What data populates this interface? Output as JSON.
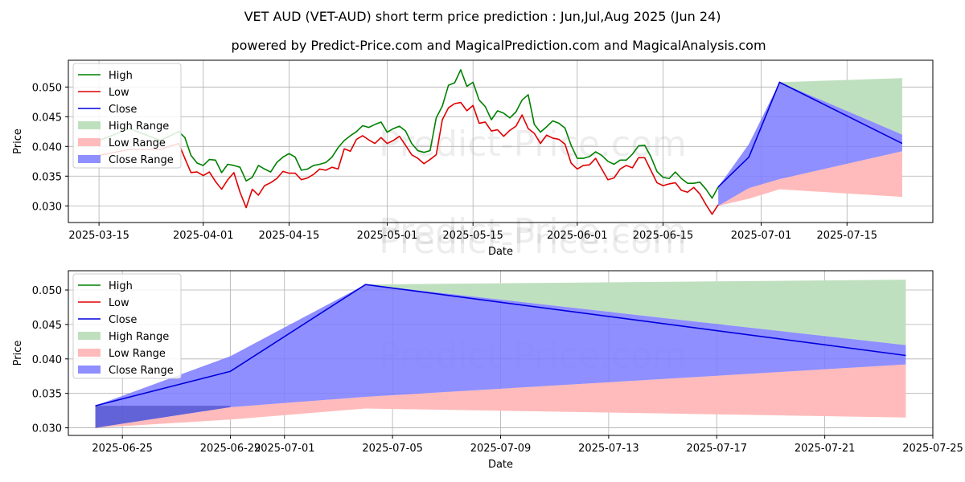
{
  "title": "VET AUD (VET-AUD) short term price prediction : Jun,Jul,Aug 2025 (Jun 24)",
  "subtitle": "powered by Predict-Price.com and MagicalPrediction.com and MagicalAnalysis.com",
  "watermark": "Predict-Price.com",
  "colors": {
    "high": "#008000",
    "low": "#e00000",
    "close": "#0000dd",
    "high_range": "#bfe0bf",
    "low_range": "#ffbbbb",
    "close_range": "#7b7bff"
  },
  "chart_data": [
    {
      "type": "line",
      "xlabel": "Date",
      "ylabel": "Price",
      "xlim": [
        "2025-03-10",
        "2025-07-29"
      ],
      "ylim": [
        0.0272,
        0.0545
      ],
      "grid": true,
      "legend_position": "top-left",
      "x_ticks": [
        "2025-03-15",
        "2025-04-01",
        "2025-04-15",
        "2025-05-01",
        "2025-05-15",
        "2025-06-01",
        "2025-06-15",
        "2025-07-01",
        "2025-07-15"
      ],
      "y_ticks": [
        "0.030",
        "0.035",
        "0.040",
        "0.045",
        "0.050"
      ],
      "legend": [
        "High",
        "Low",
        "Close",
        "High Range",
        "Low Range",
        "Close Range"
      ],
      "series": [
        {
          "name": "High",
          "dates": [
            "2025-03-15",
            "2025-03-20",
            "2025-03-25",
            "2025-03-28",
            "2025-03-29",
            "2025-03-30",
            "2025-03-31",
            "2025-04-01",
            "2025-04-02",
            "2025-04-03",
            "2025-04-04",
            "2025-04-05",
            "2025-04-06",
            "2025-04-07",
            "2025-04-08",
            "2025-04-09",
            "2025-04-10",
            "2025-04-11",
            "2025-04-12",
            "2025-04-13",
            "2025-04-14",
            "2025-04-15",
            "2025-04-16",
            "2025-04-17",
            "2025-04-18",
            "2025-04-19",
            "2025-04-20",
            "2025-04-21",
            "2025-04-22",
            "2025-04-23",
            "2025-04-24",
            "2025-04-25",
            "2025-04-26",
            "2025-04-27",
            "2025-04-28",
            "2025-04-29",
            "2025-04-30",
            "2025-05-01",
            "2025-05-02",
            "2025-05-03",
            "2025-05-04",
            "2025-05-05",
            "2025-05-06",
            "2025-05-07",
            "2025-05-08",
            "2025-05-09",
            "2025-05-10",
            "2025-05-11",
            "2025-05-12",
            "2025-05-13",
            "2025-05-14",
            "2025-05-15",
            "2025-05-16",
            "2025-05-17",
            "2025-05-18",
            "2025-05-19",
            "2025-05-20",
            "2025-05-21",
            "2025-05-22",
            "2025-05-23",
            "2025-05-24",
            "2025-05-25",
            "2025-05-26",
            "2025-05-27",
            "2025-05-28",
            "2025-05-29",
            "2025-05-30",
            "2025-05-31",
            "2025-06-01",
            "2025-06-02",
            "2025-06-03",
            "2025-06-04",
            "2025-06-05",
            "2025-06-06",
            "2025-06-07",
            "2025-06-08",
            "2025-06-09",
            "2025-06-10",
            "2025-06-11",
            "2025-06-12",
            "2025-06-13",
            "2025-06-14",
            "2025-06-15",
            "2025-06-16",
            "2025-06-17",
            "2025-06-18",
            "2025-06-19",
            "2025-06-20",
            "2025-06-21",
            "2025-06-22",
            "2025-06-23",
            "2025-06-24"
          ],
          "values": [
            0.041,
            0.043,
            0.041,
            0.0425,
            0.0415,
            0.0385,
            0.0372,
            0.0368,
            0.0378,
            0.0377,
            0.0356,
            0.037,
            0.0368,
            0.0365,
            0.0342,
            0.0348,
            0.0368,
            0.0362,
            0.0357,
            0.0373,
            0.0382,
            0.0388,
            0.0382,
            0.036,
            0.0362,
            0.0368,
            0.037,
            0.0373,
            0.0382,
            0.0398,
            0.041,
            0.0418,
            0.0425,
            0.0435,
            0.0432,
            0.0437,
            0.0441,
            0.0424,
            0.043,
            0.0434,
            0.0426,
            0.0405,
            0.0393,
            0.039,
            0.0393,
            0.0448,
            0.0468,
            0.0503,
            0.0507,
            0.0529,
            0.0501,
            0.0508,
            0.0478,
            0.0467,
            0.0445,
            0.046,
            0.0456,
            0.0448,
            0.0458,
            0.0478,
            0.0487,
            0.0437,
            0.0424,
            0.0433,
            0.0443,
            0.0439,
            0.0431,
            0.0402,
            0.038,
            0.038,
            0.0383,
            0.0391,
            0.0385,
            0.0375,
            0.037,
            0.0377,
            0.0377,
            0.0387,
            0.0401,
            0.0402,
            0.0383,
            0.0358,
            0.0348,
            0.0346,
            0.0357,
            0.0346,
            0.0338,
            0.0338,
            0.034,
            0.0328,
            0.0313,
            0.0332
          ]
        },
        {
          "name": "Low",
          "dates": [
            "2025-03-15",
            "2025-03-20",
            "2025-03-25",
            "2025-03-28",
            "2025-03-29",
            "2025-03-30",
            "2025-03-31",
            "2025-04-01",
            "2025-04-02",
            "2025-04-03",
            "2025-04-04",
            "2025-04-05",
            "2025-04-06",
            "2025-04-07",
            "2025-04-08",
            "2025-04-09",
            "2025-04-10",
            "2025-04-11",
            "2025-04-12",
            "2025-04-13",
            "2025-04-14",
            "2025-04-15",
            "2025-04-16",
            "2025-04-17",
            "2025-04-18",
            "2025-04-19",
            "2025-04-20",
            "2025-04-21",
            "2025-04-22",
            "2025-04-23",
            "2025-04-24",
            "2025-04-25",
            "2025-04-26",
            "2025-04-27",
            "2025-04-28",
            "2025-04-29",
            "2025-04-30",
            "2025-05-01",
            "2025-05-02",
            "2025-05-03",
            "2025-05-04",
            "2025-05-05",
            "2025-05-06",
            "2025-05-07",
            "2025-05-08",
            "2025-05-09",
            "2025-05-10",
            "2025-05-11",
            "2025-05-12",
            "2025-05-13",
            "2025-05-14",
            "2025-05-15",
            "2025-05-16",
            "2025-05-17",
            "2025-05-18",
            "2025-05-19",
            "2025-05-20",
            "2025-05-21",
            "2025-05-22",
            "2025-05-23",
            "2025-05-24",
            "2025-05-25",
            "2025-05-26",
            "2025-05-27",
            "2025-05-28",
            "2025-05-29",
            "2025-05-30",
            "2025-05-31",
            "2025-06-01",
            "2025-06-02",
            "2025-06-03",
            "2025-06-04",
            "2025-06-05",
            "2025-06-06",
            "2025-06-07",
            "2025-06-08",
            "2025-06-09",
            "2025-06-10",
            "2025-06-11",
            "2025-06-12",
            "2025-06-13",
            "2025-06-14",
            "2025-06-15",
            "2025-06-16",
            "2025-06-17",
            "2025-06-18",
            "2025-06-19",
            "2025-06-20",
            "2025-06-21",
            "2025-06-22",
            "2025-06-23",
            "2025-06-24"
          ],
          "values": [
            0.0385,
            0.0395,
            0.0395,
            0.0405,
            0.038,
            0.0356,
            0.0357,
            0.0351,
            0.0357,
            0.0341,
            0.0328,
            0.0344,
            0.0356,
            0.0323,
            0.0297,
            0.0328,
            0.0318,
            0.0334,
            0.0339,
            0.0346,
            0.0358,
            0.0355,
            0.0355,
            0.0344,
            0.0347,
            0.0353,
            0.0362,
            0.036,
            0.0365,
            0.0362,
            0.0396,
            0.0392,
            0.0412,
            0.0418,
            0.0411,
            0.0405,
            0.0415,
            0.0405,
            0.041,
            0.0417,
            0.0402,
            0.0386,
            0.038,
            0.0371,
            0.0378,
            0.0386,
            0.0445,
            0.0465,
            0.0472,
            0.0474,
            0.046,
            0.0469,
            0.0439,
            0.0441,
            0.0426,
            0.0428,
            0.0417,
            0.0427,
            0.0434,
            0.0453,
            0.043,
            0.0422,
            0.0405,
            0.0419,
            0.0414,
            0.0412,
            0.0404,
            0.0372,
            0.0362,
            0.0368,
            0.0369,
            0.038,
            0.0362,
            0.0344,
            0.0347,
            0.0362,
            0.0368,
            0.0364,
            0.0381,
            0.0381,
            0.036,
            0.0339,
            0.0334,
            0.0337,
            0.0339,
            0.0326,
            0.0323,
            0.0331,
            0.032,
            0.0302,
            0.0286,
            0.0302
          ]
        },
        {
          "name": "Close",
          "dates": [
            "2025-06-24",
            "2025-06-29",
            "2025-07-04",
            "2025-07-24"
          ],
          "values": [
            0.0332,
            0.0382,
            0.0508,
            0.0405
          ]
        }
      ],
      "ranges": [
        {
          "name": "High Range",
          "dates": [
            "2025-06-24",
            "2025-06-29",
            "2025-07-04",
            "2025-07-24"
          ],
          "lower": [
            0.0332,
            0.0404,
            0.0508,
            0.042
          ],
          "upper": [
            0.0332,
            0.0404,
            0.0508,
            0.0515
          ]
        },
        {
          "name": "Low Range",
          "dates": [
            "2025-06-24",
            "2025-06-29",
            "2025-07-04",
            "2025-07-24"
          ],
          "lower": [
            0.03,
            0.0312,
            0.0328,
            0.0315
          ],
          "upper": [
            0.03,
            0.033,
            0.0345,
            0.0392
          ]
        },
        {
          "name": "Close Range",
          "dates": [
            "2025-06-24",
            "2025-06-29",
            "2025-07-04",
            "2025-07-24"
          ],
          "lower": [
            0.03,
            0.033,
            0.0345,
            0.0392
          ],
          "upper": [
            0.0332,
            0.0404,
            0.0508,
            0.042
          ]
        }
      ]
    },
    {
      "type": "line",
      "xlabel": "Date",
      "ylabel": "Price",
      "xlim": [
        "2025-06-23",
        "2025-07-25"
      ],
      "ylim": [
        0.0289,
        0.0528
      ],
      "grid": true,
      "legend_position": "top-left",
      "x_ticks": [
        "2025-06-25",
        "2025-06-29",
        "2025-07-01",
        "2025-07-05",
        "2025-07-09",
        "2025-07-13",
        "2025-07-17",
        "2025-07-21",
        "2025-07-25"
      ],
      "y_ticks": [
        "0.030",
        "0.035",
        "0.040",
        "0.045",
        "0.050"
      ],
      "legend": [
        "High",
        "Low",
        "Close",
        "High Range",
        "Low Range",
        "Close Range"
      ],
      "series": [
        {
          "name": "Close",
          "dates": [
            "2025-06-24",
            "2025-06-29",
            "2025-07-04",
            "2025-07-24"
          ],
          "values": [
            0.0332,
            0.0382,
            0.0508,
            0.0405
          ]
        }
      ],
      "ranges": [
        {
          "name": "High Range",
          "dates": [
            "2025-06-24",
            "2025-06-29",
            "2025-07-04",
            "2025-07-24"
          ],
          "lower": [
            0.0332,
            0.0404,
            0.0508,
            0.042
          ],
          "upper": [
            0.0332,
            0.0404,
            0.0508,
            0.0515
          ]
        },
        {
          "name": "Low Range",
          "dates": [
            "2025-06-24",
            "2025-06-29",
            "2025-07-04",
            "2025-07-24"
          ],
          "lower": [
            0.03,
            0.0312,
            0.0328,
            0.0315
          ],
          "upper": [
            0.03,
            0.033,
            0.0345,
            0.0392
          ]
        },
        {
          "name": "Close Range",
          "dates": [
            "2025-06-24",
            "2025-06-29",
            "2025-07-04",
            "2025-07-24"
          ],
          "lower": [
            0.03,
            0.033,
            0.0345,
            0.0392
          ],
          "upper": [
            0.0332,
            0.0404,
            0.0508,
            0.042
          ]
        },
        {
          "name": "Extra band",
          "dates": [
            "2025-06-24",
            "2025-06-29"
          ],
          "lower": [
            0.03,
            0.033
          ],
          "upper": [
            0.0332,
            0.0332
          ]
        }
      ]
    }
  ]
}
